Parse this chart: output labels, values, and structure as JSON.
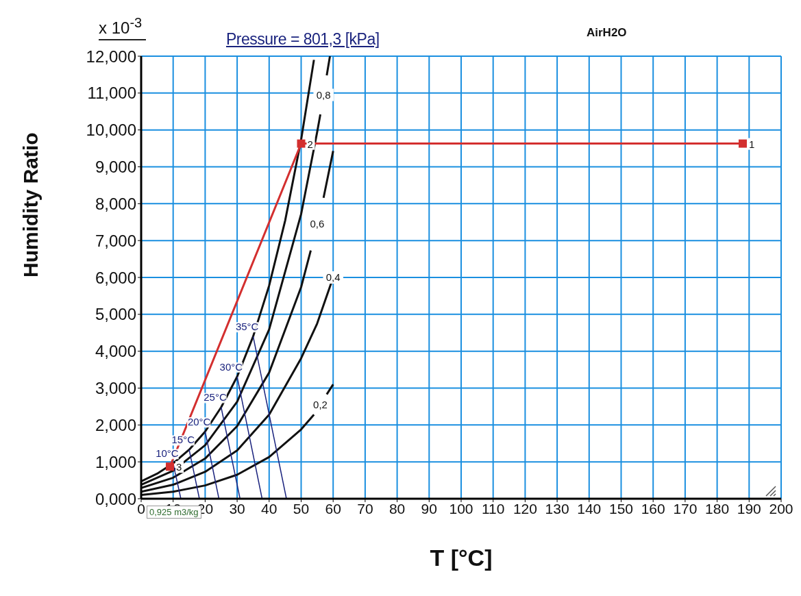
{
  "chart_data": {
    "type": "line",
    "title": "Pressure = 801,3 [kPa]",
    "subtitle": "AirH2O",
    "xlabel": "T [°C]",
    "ylabel": "Humidity Ratio",
    "xlim": [
      0,
      200
    ],
    "xticks": [
      0,
      10,
      20,
      30,
      40,
      50,
      60,
      70,
      80,
      90,
      100,
      110,
      120,
      130,
      140,
      150,
      160,
      170,
      180,
      190,
      200
    ],
    "ylim": [
      0,
      12
    ],
    "yticks": [
      {
        "value": 0,
        "label": "0,000"
      },
      {
        "value": 1,
        "label": "1,000"
      },
      {
        "value": 2,
        "label": "2,000"
      },
      {
        "value": 3,
        "label": "3,000"
      },
      {
        "value": 4,
        "label": "4,000"
      },
      {
        "value": 5,
        "label": "5,000"
      },
      {
        "value": 6,
        "label": "6,000"
      },
      {
        "value": 7,
        "label": "7,000"
      },
      {
        "value": 8,
        "label": "8,000"
      },
      {
        "value": 9,
        "label": "9,000"
      },
      {
        "value": 10,
        "label": "10,000"
      },
      {
        "value": 11,
        "label": "11,000"
      },
      {
        "value": 12,
        "label": "12,000"
      }
    ],
    "grid": true,
    "marker": "none",
    "line_style": "solid",
    "series": [
      {
        "color": "#111111",
        "x": [
          0,
          5,
          10,
          15,
          20,
          25,
          30,
          35,
          40,
          45,
          50,
          54
        ],
        "values": [
          0.47,
          0.68,
          0.96,
          1.33,
          1.82,
          2.48,
          3.31,
          4.4,
          5.78,
          7.54,
          9.74,
          11.9
        ]
      },
      {
        "color": "#111111",
        "x": [
          0,
          10,
          20,
          30,
          40,
          50,
          55,
          56,
          57,
          58,
          59
        ],
        "values": [
          0.38,
          0.76,
          1.45,
          2.63,
          4.59,
          7.72,
          9.94,
          10.42,
          null,
          11.48,
          12
        ]
      },
      {
        "color": "#111111",
        "x": [
          0,
          10,
          20,
          30,
          40,
          50,
          53,
          55,
          57,
          60
        ],
        "values": [
          0.29,
          0.57,
          1.09,
          1.97,
          3.42,
          5.74,
          6.73,
          null,
          8.16,
          9.43
        ]
      },
      {
        "color": "#111111",
        "x": [
          0,
          10,
          20,
          30,
          40,
          50,
          55,
          60
        ],
        "values": [
          0.19,
          0.38,
          0.73,
          1.31,
          2.28,
          3.81,
          4.75,
          6
        ]
      },
      {
        "color": "#111111",
        "x": [
          0,
          10,
          20,
          30,
          40,
          50,
          54,
          56,
          58,
          60
        ],
        "values": [
          0.1,
          0.19,
          0.36,
          0.65,
          1.13,
          1.88,
          2.28,
          null,
          2.83,
          3.1
        ]
      },
      {
        "color": "#1a237e",
        "x": [
          10,
          12.4
        ],
        "values": [
          0.96,
          0
        ]
      },
      {
        "color": "#1a237e",
        "x": [
          15,
          18.2
        ],
        "values": [
          1.33,
          0
        ]
      },
      {
        "color": "#1a237e",
        "x": [
          20,
          24.3
        ],
        "values": [
          1.82,
          0
        ]
      },
      {
        "color": "#1a237e",
        "x": [
          25,
          30.9
        ],
        "values": [
          2.48,
          0
        ]
      },
      {
        "color": "#1a237e",
        "x": [
          30,
          37.8
        ],
        "values": [
          3.31,
          0
        ]
      },
      {
        "color": "#1a237e",
        "x": [
          35,
          45.4
        ],
        "values": [
          4.4,
          0
        ]
      },
      {
        "color": "#d32f2f",
        "marker": "square",
        "x": [
          188,
          50,
          9
        ],
        "values": [
          9.63,
          9.63,
          0.87
        ]
      }
    ],
    "annotations": [
      "x 10$^{-3}$",
      "0,925 m3/kg",
      {
        "text": "1",
        "x": 188,
        "y": 9.63
      },
      {
        "text": "2",
        "x": 50,
        "y": 9.63
      },
      {
        "text": "3",
        "x": 9,
        "y": 0.87
      },
      {
        "text": "0,8",
        "x": 57,
        "y": 10.95
      },
      {
        "text": "0,6",
        "x": 55,
        "y": 7.45
      },
      {
        "text": "0,4",
        "x": 60,
        "y": 6
      },
      {
        "text": "0,2",
        "x": 56,
        "y": 2.55
      },
      {
        "text": "10°C",
        "x": 10,
        "y": 0.96
      },
      {
        "text": "15°C",
        "x": 15,
        "y": 1.33
      },
      {
        "text": "20°C",
        "x": 20,
        "y": 1.82
      },
      {
        "text": "25°C",
        "x": 25,
        "y": 2.48
      },
      {
        "text": "30°C",
        "x": 30,
        "y": 3.31
      },
      {
        "text": "35°C",
        "x": 35,
        "y": 4.4
      }
    ]
  }
}
